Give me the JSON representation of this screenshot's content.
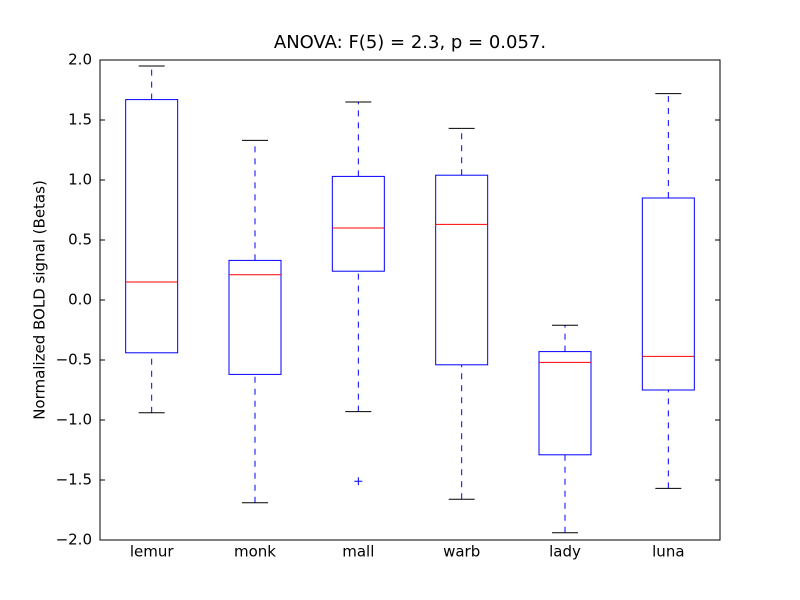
{
  "chart_data": {
    "type": "box",
    "title": "ANOVA: F(5) = 2.3, p = 0.057.",
    "y_label": "Normalized BOLD signal (Betas)",
    "categories": [
      "lemur",
      "monk",
      "mall",
      "warb",
      "lady",
      "luna"
    ],
    "boxes": [
      {
        "whislo": -0.94,
        "q1": -0.44,
        "med": 0.15,
        "q3": 1.67,
        "whishi": 1.95,
        "fliers": []
      },
      {
        "whislo": -1.69,
        "q1": -0.62,
        "med": 0.21,
        "q3": 0.33,
        "whishi": 1.33,
        "fliers": []
      },
      {
        "whislo": -0.93,
        "q1": 0.24,
        "med": 0.6,
        "q3": 1.03,
        "whishi": 1.65,
        "fliers": [
          -1.51
        ]
      },
      {
        "whislo": -1.66,
        "q1": -0.54,
        "med": 0.63,
        "q3": 1.04,
        "whishi": 1.43,
        "fliers": []
      },
      {
        "whislo": -1.94,
        "q1": -1.29,
        "med": -0.52,
        "q3": -0.43,
        "whishi": -0.21,
        "fliers": []
      },
      {
        "whislo": -1.57,
        "q1": -0.75,
        "med": -0.47,
        "q3": 0.85,
        "whishi": 1.72,
        "fliers": []
      }
    ],
    "box_color": "#0000ff",
    "median_color": "#ff0000",
    "cap_color": "#000000",
    "ylim": [
      -2,
      2
    ],
    "yticks": [
      {
        "value": -2,
        "label": "−2.0"
      },
      {
        "value": -1.5,
        "label": "−1.5"
      },
      {
        "value": -1,
        "label": "−1.0"
      },
      {
        "value": -0.5,
        "label": "−0.5"
      },
      {
        "value": 0,
        "label": "0.0"
      },
      {
        "value": 0.5,
        "label": "0.5"
      },
      {
        "value": 1,
        "label": "1.0"
      },
      {
        "value": 1.5,
        "label": "1.5"
      },
      {
        "value": 2,
        "label": "2.0"
      }
    ]
  }
}
